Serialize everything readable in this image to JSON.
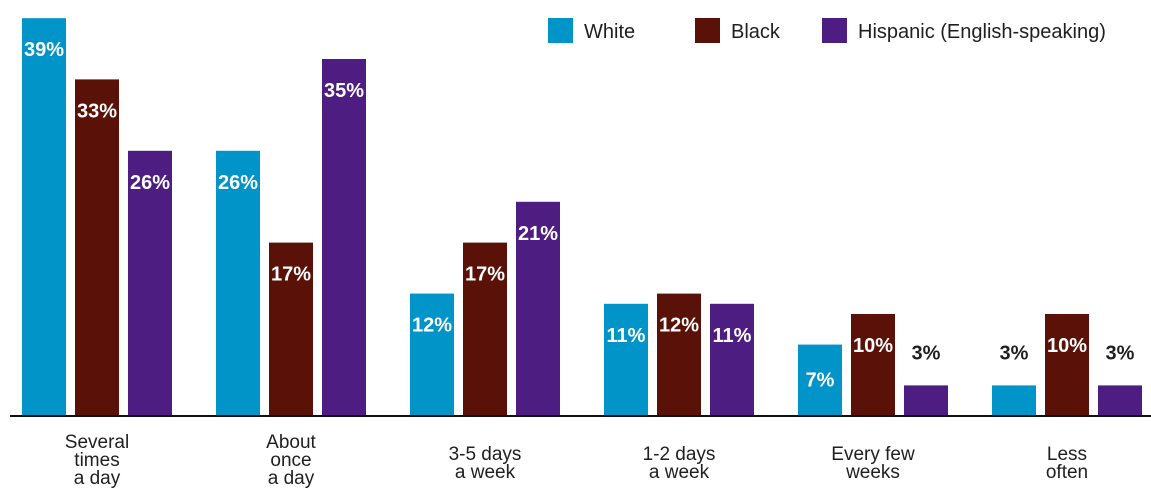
{
  "chart_data": {
    "type": "bar",
    "categories": [
      [
        "Several",
        "times",
        "a day"
      ],
      [
        "About",
        "once",
        "a day"
      ],
      [
        "3-5 days",
        "a week"
      ],
      [
        "1-2 days",
        "a week"
      ],
      [
        "Every few",
        "weeks"
      ],
      [
        "Less",
        "often"
      ]
    ],
    "series": [
      {
        "name": "White",
        "values": [
          39,
          26,
          12,
          11,
          7,
          3
        ],
        "color": "#0094c8"
      },
      {
        "name": "Black",
        "values": [
          33,
          17,
          17,
          12,
          10,
          10
        ],
        "color": "#5a1208"
      },
      {
        "name": "Hispanic (English-speaking)",
        "values": [
          26,
          35,
          21,
          11,
          3,
          3
        ],
        "color": "#4d1d81"
      }
    ],
    "value_suffix": "%",
    "ylim": [
      0,
      40
    ],
    "legend_position": "top-right",
    "grid": false
  }
}
